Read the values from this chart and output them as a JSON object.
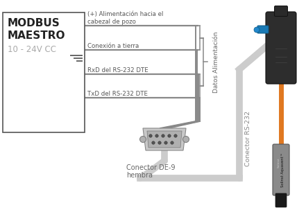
{
  "box_label_line1": "MODBUS",
  "box_label_line2": "MAESTRO",
  "box_label_line3": "10 - 24V CC",
  "wire_labels": [
    "(+) Alimentación hacia el\ncabezal de pozo",
    "Conexión a tierra",
    "RxD del RS-232 DTE",
    "TxD del RS-232 DTE"
  ],
  "bracket_label": "Datos Alimentación",
  "connector_label_1": "Conector DE-9",
  "connector_label_2": "hembra",
  "rs232_label": "Conector RS-232",
  "bg_color": "#ffffff",
  "text_dark": "#222222",
  "text_gray": "#aaaaaa",
  "text_mid": "#666666",
  "wire_color": "#888888",
  "box_edge": "#555555"
}
